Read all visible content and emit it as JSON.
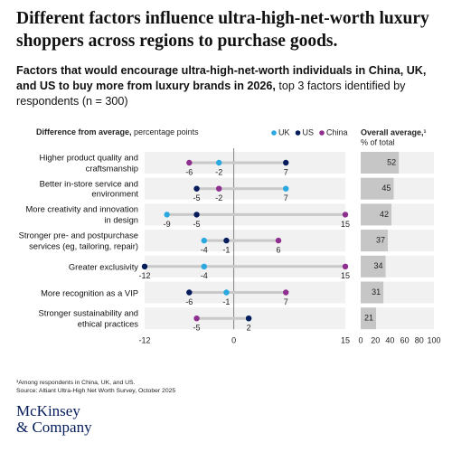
{
  "header": {
    "title": "Different factors influence ultra-high-net-worth luxury shoppers across regions to purchase goods.",
    "subtitle_bold": "Factors that would encourage ultra-high-net-worth individuals in China, UK, and US to buy more from luxury brands in 2026,",
    "subtitle_rest": " top 3 factors identified by respondents (n = 300)"
  },
  "chart_data": [
    {
      "type": "dot",
      "axis_label_bold": "Difference from average,",
      "axis_label_rest": " percentage points",
      "categories": [
        "Higher product quality and craftsmanship",
        "Better in-store service and environment",
        "More creativity and innovation in design",
        "Stronger pre- and postpurchase services (eg, tailoring, repair)",
        "Greater exclusivity",
        "More recognition as a VIP",
        "Stronger sustainability and ethical practices"
      ],
      "series": [
        {
          "name": "UK",
          "color": "#2aa8e0",
          "values": [
            -2,
            7,
            -9,
            -4,
            -4,
            -1,
            2
          ]
        },
        {
          "name": "US",
          "color": "#051c5c",
          "values": [
            7,
            -5,
            -5,
            -1,
            -12,
            -6,
            2
          ]
        },
        {
          "name": "China",
          "color": "#8e2f8f",
          "values": [
            -6,
            -2,
            15,
            6,
            15,
            7,
            -5
          ]
        }
      ],
      "xlim": [
        -12,
        15
      ],
      "xticks": [
        -12,
        0,
        15
      ]
    },
    {
      "type": "bar",
      "axis_label_bold": "Overall average,¹",
      "axis_label_rest": "% of total",
      "values": [
        52,
        45,
        42,
        37,
        34,
        31,
        21
      ],
      "color": "#c6c6c6",
      "xlim": [
        0,
        100
      ],
      "xticks": [
        0,
        20,
        40,
        60,
        80,
        100
      ]
    }
  ],
  "footer": {
    "note": "¹Among respondents in China, UK, and US.",
    "source": "Source: Altiant Ultra-High Net Worth Survey, October 2025",
    "logo_line1": "McKinsey",
    "logo_line2": "& Company"
  }
}
